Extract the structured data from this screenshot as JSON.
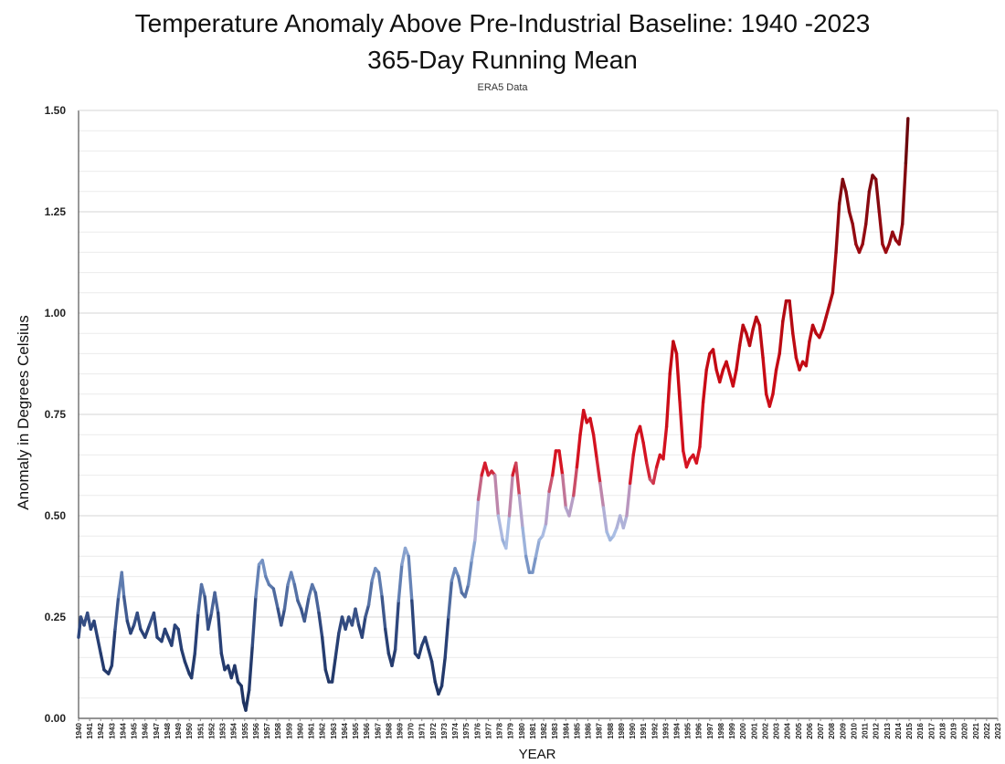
{
  "chart_data": {
    "type": "line",
    "title": "Temperature Anomaly Above Pre-Industrial Baseline: 1940 -2023",
    "subtitle": "365-Day Running Mean",
    "source_note": "ERA5 Data",
    "xlabel": "YEAR",
    "ylabel": "Anomaly in Degrees Celsius",
    "ylim": [
      0,
      1.5
    ],
    "xlim": [
      1940,
      2023
    ],
    "yticks": [
      "0.00",
      "0.25",
      "0.50",
      "0.75",
      "1.00",
      "1.25",
      "1.50"
    ],
    "xticks": [
      "1940",
      "1941",
      "1942",
      "1943",
      "1944",
      "1945",
      "1946",
      "1947",
      "1948",
      "1949",
      "1950",
      "1951",
      "1952",
      "1953",
      "1954",
      "1955",
      "1956",
      "1957",
      "1958",
      "1959",
      "1960",
      "1961",
      "1962",
      "1963",
      "1964",
      "1965",
      "1966",
      "1967",
      "1968",
      "1969",
      "1970",
      "1971",
      "1972",
      "1973",
      "1974",
      "1975",
      "1976",
      "1977",
      "1978",
      "1979",
      "1980",
      "1981",
      "1982",
      "1983",
      "1984",
      "1985",
      "1986",
      "1987",
      "1988",
      "1989",
      "1990",
      "1991",
      "1992",
      "1993",
      "1994",
      "1995",
      "1996",
      "1997",
      "1998",
      "1999",
      "2000",
      "2001",
      "2002",
      "2003",
      "2004",
      "2005",
      "2006",
      "2007",
      "2008",
      "2009",
      "2010",
      "2011",
      "2012",
      "2013",
      "2014",
      "2015",
      "2016",
      "2017",
      "2018",
      "2019",
      "2020",
      "2021",
      "2022",
      "2023"
    ],
    "grid": "horizontal",
    "line_color_scale": "navy at low values through light blue to red and dark red at high values",
    "series": [
      {
        "points": [
          [
            1940.0,
            0.2
          ],
          [
            1940.2,
            0.25
          ],
          [
            1940.5,
            0.23
          ],
          [
            1940.8,
            0.26
          ],
          [
            1941.1,
            0.22
          ],
          [
            1941.4,
            0.24
          ],
          [
            1941.7,
            0.2
          ],
          [
            1942.0,
            0.16
          ],
          [
            1942.3,
            0.12
          ],
          [
            1942.7,
            0.11
          ],
          [
            1943.0,
            0.13
          ],
          [
            1943.3,
            0.22
          ],
          [
            1943.6,
            0.3
          ],
          [
            1943.9,
            0.36
          ],
          [
            1944.1,
            0.3
          ],
          [
            1944.4,
            0.24
          ],
          [
            1944.7,
            0.21
          ],
          [
            1945.0,
            0.23
          ],
          [
            1945.3,
            0.26
          ],
          [
            1945.6,
            0.22
          ],
          [
            1946.0,
            0.2
          ],
          [
            1946.4,
            0.23
          ],
          [
            1946.8,
            0.26
          ],
          [
            1947.1,
            0.2
          ],
          [
            1947.5,
            0.19
          ],
          [
            1947.8,
            0.22
          ],
          [
            1948.1,
            0.2
          ],
          [
            1948.4,
            0.18
          ],
          [
            1948.7,
            0.23
          ],
          [
            1949.0,
            0.22
          ],
          [
            1949.3,
            0.17
          ],
          [
            1949.6,
            0.14
          ],
          [
            1950.0,
            0.11
          ],
          [
            1950.2,
            0.1
          ],
          [
            1950.5,
            0.16
          ],
          [
            1950.8,
            0.26
          ],
          [
            1951.1,
            0.33
          ],
          [
            1951.4,
            0.3
          ],
          [
            1951.7,
            0.22
          ],
          [
            1952.0,
            0.26
          ],
          [
            1952.3,
            0.31
          ],
          [
            1952.6,
            0.26
          ],
          [
            1952.9,
            0.16
          ],
          [
            1953.2,
            0.12
          ],
          [
            1953.5,
            0.13
          ],
          [
            1953.8,
            0.1
          ],
          [
            1954.1,
            0.13
          ],
          [
            1954.4,
            0.09
          ],
          [
            1954.7,
            0.08
          ],
          [
            1954.9,
            0.04
          ],
          [
            1955.1,
            0.02
          ],
          [
            1955.4,
            0.07
          ],
          [
            1955.7,
            0.18
          ],
          [
            1956.0,
            0.3
          ],
          [
            1956.3,
            0.38
          ],
          [
            1956.6,
            0.39
          ],
          [
            1956.9,
            0.35
          ],
          [
            1957.2,
            0.33
          ],
          [
            1957.6,
            0.32
          ],
          [
            1958.0,
            0.27
          ],
          [
            1958.3,
            0.23
          ],
          [
            1958.6,
            0.27
          ],
          [
            1958.9,
            0.33
          ],
          [
            1959.2,
            0.36
          ],
          [
            1959.5,
            0.33
          ],
          [
            1959.8,
            0.29
          ],
          [
            1960.1,
            0.27
          ],
          [
            1960.4,
            0.24
          ],
          [
            1960.8,
            0.3
          ],
          [
            1961.1,
            0.33
          ],
          [
            1961.4,
            0.31
          ],
          [
            1961.7,
            0.26
          ],
          [
            1962.0,
            0.2
          ],
          [
            1962.3,
            0.12
          ],
          [
            1962.6,
            0.09
          ],
          [
            1962.9,
            0.09
          ],
          [
            1963.2,
            0.15
          ],
          [
            1963.5,
            0.21
          ],
          [
            1963.8,
            0.25
          ],
          [
            1964.1,
            0.22
          ],
          [
            1964.4,
            0.25
          ],
          [
            1964.7,
            0.23
          ],
          [
            1965.0,
            0.27
          ],
          [
            1965.3,
            0.23
          ],
          [
            1965.6,
            0.2
          ],
          [
            1965.9,
            0.25
          ],
          [
            1966.2,
            0.28
          ],
          [
            1966.5,
            0.34
          ],
          [
            1966.8,
            0.37
          ],
          [
            1967.1,
            0.36
          ],
          [
            1967.4,
            0.3
          ],
          [
            1967.7,
            0.22
          ],
          [
            1968.0,
            0.16
          ],
          [
            1968.3,
            0.13
          ],
          [
            1968.6,
            0.17
          ],
          [
            1968.9,
            0.29
          ],
          [
            1969.2,
            0.38
          ],
          [
            1969.5,
            0.42
          ],
          [
            1969.8,
            0.4
          ],
          [
            1970.1,
            0.29
          ],
          [
            1970.4,
            0.16
          ],
          [
            1970.7,
            0.15
          ],
          [
            1971.0,
            0.18
          ],
          [
            1971.3,
            0.2
          ],
          [
            1971.6,
            0.17
          ],
          [
            1971.9,
            0.14
          ],
          [
            1972.2,
            0.09
          ],
          [
            1972.5,
            0.06
          ],
          [
            1972.8,
            0.08
          ],
          [
            1973.1,
            0.15
          ],
          [
            1973.4,
            0.25
          ],
          [
            1973.7,
            0.34
          ],
          [
            1974.0,
            0.37
          ],
          [
            1974.3,
            0.35
          ],
          [
            1974.6,
            0.31
          ],
          [
            1974.9,
            0.3
          ],
          [
            1975.2,
            0.33
          ],
          [
            1975.5,
            0.39
          ],
          [
            1975.8,
            0.44
          ],
          [
            1976.1,
            0.54
          ],
          [
            1976.4,
            0.6
          ],
          [
            1976.7,
            0.63
          ],
          [
            1977.0,
            0.6
          ],
          [
            1977.3,
            0.61
          ],
          [
            1977.6,
            0.6
          ],
          [
            1977.9,
            0.5
          ],
          [
            1978.3,
            0.44
          ],
          [
            1978.6,
            0.42
          ],
          [
            1978.9,
            0.5
          ],
          [
            1979.2,
            0.6
          ],
          [
            1979.5,
            0.63
          ],
          [
            1979.8,
            0.55
          ],
          [
            1980.1,
            0.47
          ],
          [
            1980.4,
            0.4
          ],
          [
            1980.7,
            0.36
          ],
          [
            1981.0,
            0.36
          ],
          [
            1981.3,
            0.4
          ],
          [
            1981.6,
            0.44
          ],
          [
            1981.9,
            0.45
          ],
          [
            1982.2,
            0.48
          ],
          [
            1982.5,
            0.56
          ],
          [
            1982.8,
            0.6
          ],
          [
            1983.1,
            0.66
          ],
          [
            1983.4,
            0.66
          ],
          [
            1983.7,
            0.6
          ],
          [
            1984.0,
            0.52
          ],
          [
            1984.3,
            0.5
          ],
          [
            1984.7,
            0.55
          ],
          [
            1985.0,
            0.62
          ],
          [
            1985.3,
            0.7
          ],
          [
            1985.6,
            0.76
          ],
          [
            1985.9,
            0.73
          ],
          [
            1986.2,
            0.74
          ],
          [
            1986.5,
            0.7
          ],
          [
            1986.8,
            0.64
          ],
          [
            1987.1,
            0.58
          ],
          [
            1987.4,
            0.52
          ],
          [
            1987.7,
            0.46
          ],
          [
            1988.0,
            0.44
          ],
          [
            1988.3,
            0.45
          ],
          [
            1988.6,
            0.47
          ],
          [
            1988.9,
            0.5
          ],
          [
            1989.2,
            0.47
          ],
          [
            1989.5,
            0.5
          ],
          [
            1989.8,
            0.58
          ],
          [
            1990.1,
            0.65
          ],
          [
            1990.4,
            0.7
          ],
          [
            1990.7,
            0.72
          ],
          [
            1991.0,
            0.68
          ],
          [
            1991.3,
            0.63
          ],
          [
            1991.6,
            0.59
          ],
          [
            1991.9,
            0.58
          ],
          [
            1992.2,
            0.62
          ],
          [
            1992.5,
            0.65
          ],
          [
            1992.8,
            0.64
          ],
          [
            1993.1,
            0.72
          ],
          [
            1993.4,
            0.85
          ],
          [
            1993.7,
            0.93
          ],
          [
            1994.0,
            0.9
          ],
          [
            1994.3,
            0.78
          ],
          [
            1994.6,
            0.66
          ],
          [
            1994.9,
            0.62
          ],
          [
            1995.2,
            0.64
          ],
          [
            1995.5,
            0.65
          ],
          [
            1995.8,
            0.63
          ],
          [
            1996.1,
            0.67
          ],
          [
            1996.4,
            0.78
          ],
          [
            1996.7,
            0.86
          ],
          [
            1997.0,
            0.9
          ],
          [
            1997.3,
            0.91
          ],
          [
            1997.6,
            0.86
          ],
          [
            1997.9,
            0.83
          ],
          [
            1998.2,
            0.86
          ],
          [
            1998.5,
            0.88
          ],
          [
            1998.8,
            0.85
          ],
          [
            1999.1,
            0.82
          ],
          [
            1999.4,
            0.86
          ],
          [
            1999.7,
            0.92
          ],
          [
            2000.0,
            0.97
          ],
          [
            2000.3,
            0.95
          ],
          [
            2000.6,
            0.92
          ],
          [
            2000.9,
            0.96
          ],
          [
            2001.2,
            0.99
          ],
          [
            2001.5,
            0.97
          ],
          [
            2001.8,
            0.89
          ],
          [
            2002.1,
            0.8
          ],
          [
            2002.4,
            0.77
          ],
          [
            2002.7,
            0.8
          ],
          [
            2003.0,
            0.86
          ],
          [
            2003.3,
            0.9
          ],
          [
            2003.6,
            0.98
          ],
          [
            2003.9,
            1.03
          ],
          [
            2004.2,
            1.03
          ],
          [
            2004.5,
            0.95
          ],
          [
            2004.8,
            0.89
          ],
          [
            2005.1,
            0.86
          ],
          [
            2005.4,
            0.88
          ],
          [
            2005.7,
            0.87
          ],
          [
            2006.0,
            0.93
          ],
          [
            2006.3,
            0.97
          ],
          [
            2006.6,
            0.95
          ],
          [
            2006.9,
            0.94
          ],
          [
            2007.2,
            0.96
          ],
          [
            2007.5,
            0.99
          ],
          [
            2007.8,
            1.02
          ],
          [
            2008.1,
            1.05
          ],
          [
            2008.4,
            1.15
          ],
          [
            2008.7,
            1.27
          ],
          [
            2009.0,
            1.33
          ],
          [
            2009.3,
            1.3
          ],
          [
            2009.6,
            1.25
          ],
          [
            2009.9,
            1.22
          ],
          [
            2010.2,
            1.17
          ],
          [
            2010.5,
            1.15
          ],
          [
            2010.8,
            1.17
          ],
          [
            2011.1,
            1.22
          ],
          [
            2011.4,
            1.3
          ],
          [
            2011.7,
            1.34
          ],
          [
            2012.0,
            1.33
          ],
          [
            2012.3,
            1.25
          ],
          [
            2012.6,
            1.17
          ],
          [
            2012.9,
            1.15
          ],
          [
            2013.2,
            1.17
          ],
          [
            2013.5,
            1.2
          ],
          [
            2013.8,
            1.18
          ],
          [
            2014.1,
            1.17
          ],
          [
            2014.4,
            1.22
          ],
          [
            2014.7,
            1.37
          ],
          [
            2014.9,
            1.48
          ]
        ]
      }
    ]
  }
}
